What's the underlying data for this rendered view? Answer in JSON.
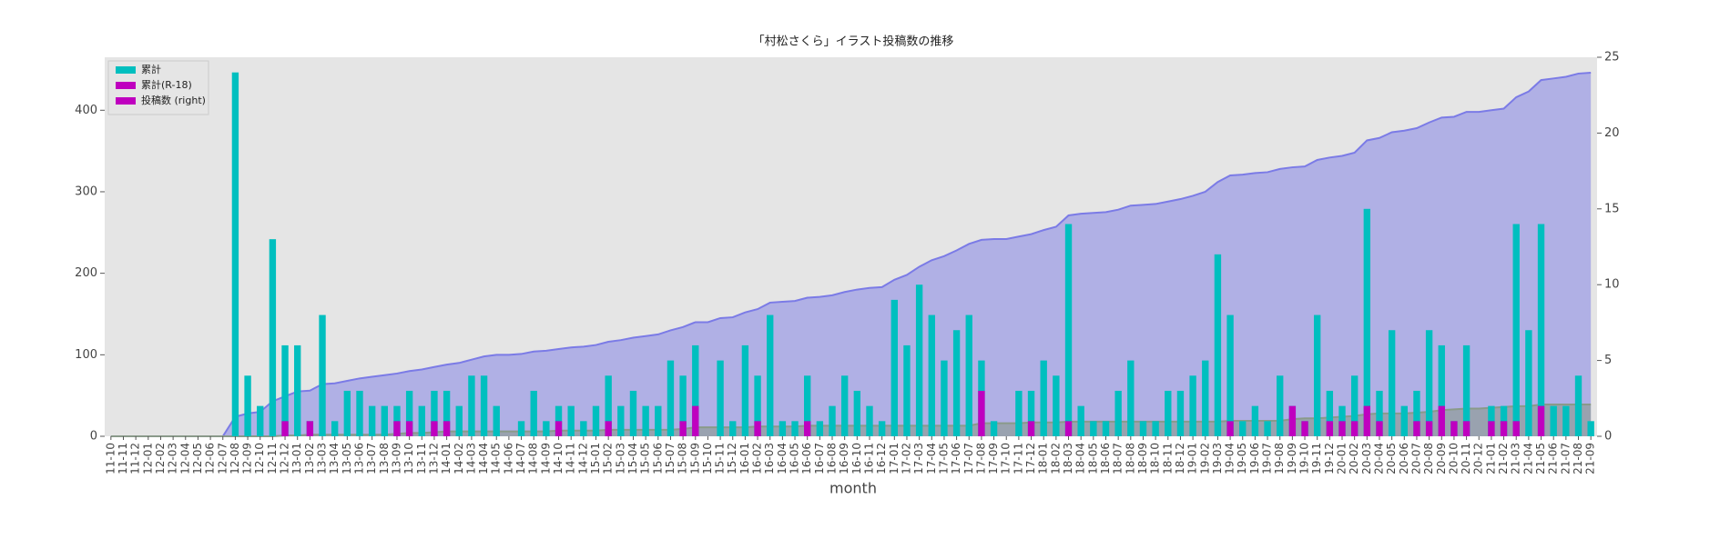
{
  "chart_data": {
    "type": "bar",
    "title": "「村松さくら」イラスト投稿数の推移",
    "xlabel": "month",
    "categories": [
      "11-10",
      "11-11",
      "11-12",
      "12-01",
      "12-02",
      "12-03",
      "12-04",
      "12-05",
      "12-06",
      "12-07",
      "12-08",
      "12-09",
      "12-10",
      "12-11",
      "12-12",
      "13-01",
      "13-02",
      "13-03",
      "13-04",
      "13-05",
      "13-06",
      "13-07",
      "13-08",
      "13-09",
      "13-10",
      "13-11",
      "13-12",
      "14-01",
      "14-02",
      "14-03",
      "14-04",
      "14-05",
      "14-06",
      "14-07",
      "14-08",
      "14-09",
      "14-10",
      "14-11",
      "14-12",
      "15-01",
      "15-02",
      "15-03",
      "15-04",
      "15-05",
      "15-06",
      "15-07",
      "15-08",
      "15-09",
      "15-10",
      "15-11",
      "15-12",
      "16-01",
      "16-02",
      "16-03",
      "16-04",
      "16-05",
      "16-06",
      "16-07",
      "16-08",
      "16-09",
      "16-10",
      "16-11",
      "16-12",
      "17-01",
      "17-02",
      "17-03",
      "17-04",
      "17-05",
      "17-06",
      "17-07",
      "17-08",
      "17-09",
      "17-10",
      "17-11",
      "17-12",
      "18-01",
      "18-02",
      "18-03",
      "18-04",
      "18-05",
      "18-06",
      "18-07",
      "18-08",
      "18-09",
      "18-10",
      "18-11",
      "18-12",
      "19-01",
      "19-02",
      "19-03",
      "19-04",
      "19-05",
      "19-06",
      "19-07",
      "19-08",
      "19-09",
      "19-10",
      "19-11",
      "19-12",
      "20-01",
      "20-02",
      "20-03",
      "20-04",
      "20-05",
      "20-06",
      "20-07",
      "20-08",
      "20-09",
      "20-10",
      "20-11",
      "20-12",
      "21-01",
      "21-02",
      "21-03",
      "21-04",
      "21-05",
      "21-06",
      "21-07",
      "21-08",
      "21-09"
    ],
    "series": [
      {
        "name": "累計",
        "color": "#00bfbf",
        "mark": "area",
        "mark_color": "#7b7be6",
        "axis": "y",
        "values": [
          0,
          0,
          0,
          0,
          0,
          0,
          0,
          0,
          0,
          0,
          24,
          28,
          30,
          43,
          49,
          55,
          56,
          64,
          65,
          68,
          71,
          73,
          75,
          77,
          80,
          82,
          85,
          88,
          90,
          94,
          98,
          100,
          100,
          101,
          104,
          105,
          107,
          109,
          110,
          112,
          116,
          118,
          121,
          123,
          125,
          130,
          134,
          140,
          140,
          145,
          146,
          152,
          156,
          164,
          165,
          166,
          170,
          171,
          173,
          177,
          180,
          182,
          183,
          192,
          198,
          208,
          216,
          221,
          228,
          236,
          241,
          242,
          242,
          245,
          248,
          253,
          257,
          271,
          273,
          274,
          275,
          278,
          283,
          284,
          285,
          288,
          291,
          295,
          300,
          312,
          320,
          321,
          323,
          324,
          328,
          330,
          331,
          339,
          342,
          344,
          348,
          363,
          366,
          373,
          375,
          378,
          385,
          391,
          392,
          398,
          398,
          400,
          402,
          416,
          423,
          437,
          439,
          441,
          445,
          446
        ]
      },
      {
        "name": "累計(R-18)",
        "color": "#bf00bf",
        "mark": "area",
        "mark_color": "#8a9a8a",
        "axis": "y",
        "values": [
          0,
          0,
          0,
          0,
          0,
          0,
          0,
          0,
          0,
          0,
          0,
          0,
          0,
          0,
          1,
          1,
          2,
          2,
          2,
          2,
          2,
          2,
          2,
          3,
          4,
          4,
          5,
          6,
          6,
          6,
          6,
          6,
          6,
          6,
          6,
          6,
          7,
          7,
          7,
          7,
          8,
          8,
          8,
          8,
          8,
          8,
          9,
          11,
          11,
          11,
          11,
          11,
          12,
          12,
          12,
          12,
          13,
          13,
          13,
          13,
          13,
          13,
          13,
          13,
          13,
          13,
          13,
          13,
          13,
          13,
          16,
          16,
          16,
          16,
          17,
          17,
          17,
          18,
          18,
          18,
          18,
          18,
          18,
          18,
          18,
          18,
          18,
          18,
          18,
          18,
          19,
          19,
          19,
          19,
          19,
          21,
          22,
          22,
          23,
          24,
          25,
          27,
          28,
          28,
          28,
          29,
          30,
          32,
          33,
          34,
          34,
          35,
          36,
          37,
          37,
          39,
          39,
          39,
          39,
          39
        ]
      },
      {
        "name": "投稿数 (right)",
        "color": "#bf00bf",
        "mark": "bar",
        "mark_color": "#00bfbf",
        "axis": "y2",
        "values": [
          0,
          0,
          0,
          0,
          0,
          0,
          0,
          0,
          0,
          0,
          24,
          4,
          2,
          13,
          6,
          6,
          1,
          8,
          1,
          3,
          3,
          2,
          2,
          2,
          3,
          2,
          3,
          3,
          2,
          4,
          4,
          2,
          0,
          1,
          3,
          1,
          2,
          2,
          1,
          2,
          4,
          2,
          3,
          2,
          2,
          5,
          4,
          6,
          0,
          5,
          1,
          6,
          4,
          8,
          1,
          1,
          4,
          1,
          2,
          4,
          3,
          2,
          1,
          9,
          6,
          10,
          8,
          5,
          7,
          8,
          5,
          1,
          0,
          3,
          3,
          5,
          4,
          14,
          2,
          1,
          1,
          3,
          5,
          1,
          1,
          3,
          3,
          4,
          5,
          12,
          8,
          1,
          2,
          1,
          4,
          2,
          1,
          8,
          3,
          2,
          4,
          15,
          3,
          7,
          2,
          3,
          7,
          6,
          1,
          6,
          0,
          2,
          2,
          14,
          7,
          14,
          2,
          2,
          4,
          1
        ]
      },
      {
        "mark": "bar",
        "mark_color": "#bf00bf",
        "axis": "y2",
        "values": [
          0,
          0,
          0,
          0,
          0,
          0,
          0,
          0,
          0,
          0,
          0,
          0,
          0,
          0,
          1,
          0,
          1,
          0,
          0,
          0,
          0,
          0,
          0,
          1,
          1,
          0,
          1,
          1,
          0,
          0,
          0,
          0,
          0,
          0,
          0,
          0,
          1,
          0,
          0,
          0,
          1,
          0,
          0,
          0,
          0,
          0,
          1,
          2,
          0,
          0,
          0,
          0,
          1,
          0,
          0,
          0,
          1,
          0,
          0,
          0,
          0,
          0,
          0,
          0,
          0,
          0,
          0,
          0,
          0,
          0,
          3,
          0,
          0,
          0,
          1,
          0,
          0,
          1,
          0,
          0,
          0,
          0,
          0,
          0,
          0,
          0,
          0,
          0,
          0,
          0,
          1,
          0,
          0,
          0,
          0,
          2,
          1,
          0,
          1,
          1,
          1,
          2,
          1,
          0,
          0,
          1,
          1,
          2,
          1,
          1,
          0,
          1,
          1,
          1,
          0,
          2,
          0,
          0,
          0,
          0
        ]
      }
    ],
    "ylim": [
      0,
      465
    ],
    "yticks": [
      0,
      100,
      200,
      300,
      400
    ],
    "y2lim": [
      0,
      25
    ],
    "y2ticks": [
      0,
      5,
      10,
      15,
      20,
      25
    ],
    "legend": "upper left"
  }
}
